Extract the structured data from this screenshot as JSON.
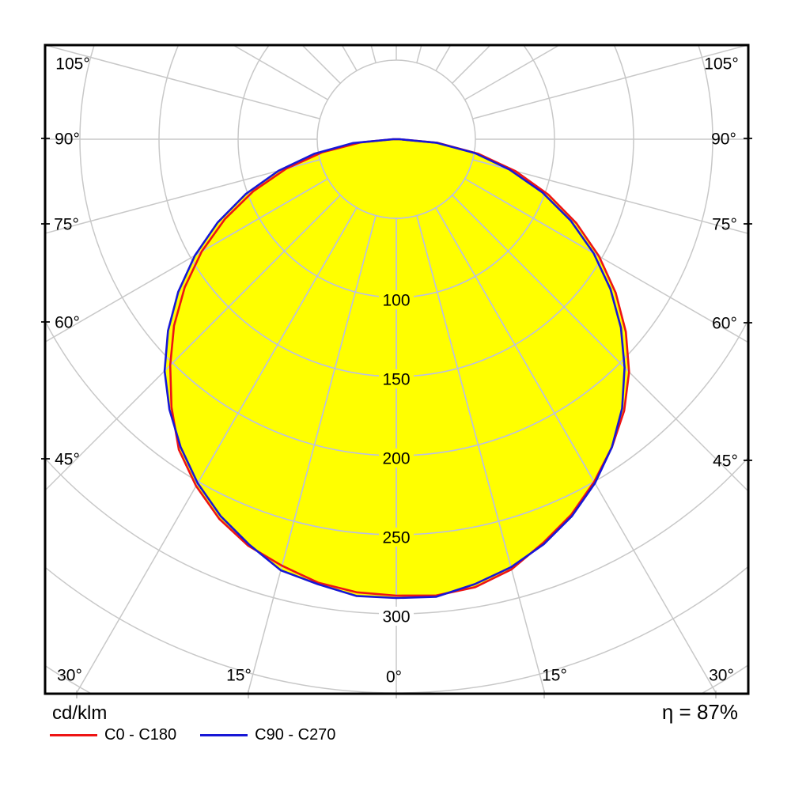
{
  "chart_data": {
    "type": "polar_photometric",
    "units_label": "cd/klm",
    "efficiency": "η = 87%",
    "angle_step_deg": 15,
    "radial_ring_values": [
      50,
      100,
      150,
      200,
      250,
      300,
      350,
      400
    ],
    "ring_labels": [
      {
        "text": "100",
        "value": 100
      },
      {
        "text": "150",
        "value": 150
      },
      {
        "text": "200",
        "value": 200
      },
      {
        "text": "250",
        "value": 250
      },
      {
        "text": "300",
        "value": 300
      }
    ],
    "angle_labels_left": [
      "105°",
      "90°",
      "75°",
      "60°",
      "45°",
      "30°"
    ],
    "angle_labels_right": [
      "105°",
      "90°",
      "75°",
      "60°",
      "45°",
      "30°"
    ],
    "angle_labels_bottom": [
      "15°",
      "0°",
      "15°"
    ],
    "angles_deg": [
      -90,
      -85,
      -80,
      -75,
      -70,
      -65,
      -60,
      -55,
      -50,
      -45,
      -40,
      -35,
      -30,
      -25,
      -20,
      -15,
      -10,
      -5,
      0,
      5,
      10,
      15,
      20,
      25,
      30,
      35,
      40,
      45,
      50,
      55,
      60,
      65,
      70,
      75,
      80,
      85,
      90
    ],
    "series": [
      {
        "name": "C0 - C180",
        "color": "#ee1414",
        "values": [
          2,
          22.3,
          47.4,
          72.1,
          96.2,
          119.6,
          142.0,
          163.3,
          183.4,
          202.1,
          221.1,
          239.6,
          253.1,
          264.8,
          273.5,
          279.1,
          284.6,
          287.5,
          288.5,
          289.5,
          287.5,
          281.5,
          271.5,
          261.8,
          250.1,
          237.6,
          224.1,
          208.1,
          189.4,
          169.3,
          148.0,
          125.6,
          102.2,
          78.1,
          52.4,
          26.3,
          2
        ]
      },
      {
        "name": "C90 - C270",
        "color": "#1717d6",
        "values": [
          2,
          27.3,
          52.4,
          77.1,
          101.2,
          124.6,
          147.0,
          168.3,
          188.4,
          207.1,
          223.1,
          237.6,
          251.1,
          262.8,
          272.5,
          282.1,
          285.6,
          289.8,
          290.0,
          290.3,
          285.6,
          280.1,
          272.5,
          262.8,
          251.1,
          237.6,
          222.1,
          204.1,
          185.4,
          165.3,
          144.0,
          121.6,
          98.2,
          74.1,
          50.4,
          25.3,
          2
        ]
      }
    ],
    "fill_color": "#ffff00",
    "grid_color": "#c8c8c8",
    "grid_color_inside": "#b9bee4",
    "border_color": "#000000",
    "rmax": 400
  }
}
